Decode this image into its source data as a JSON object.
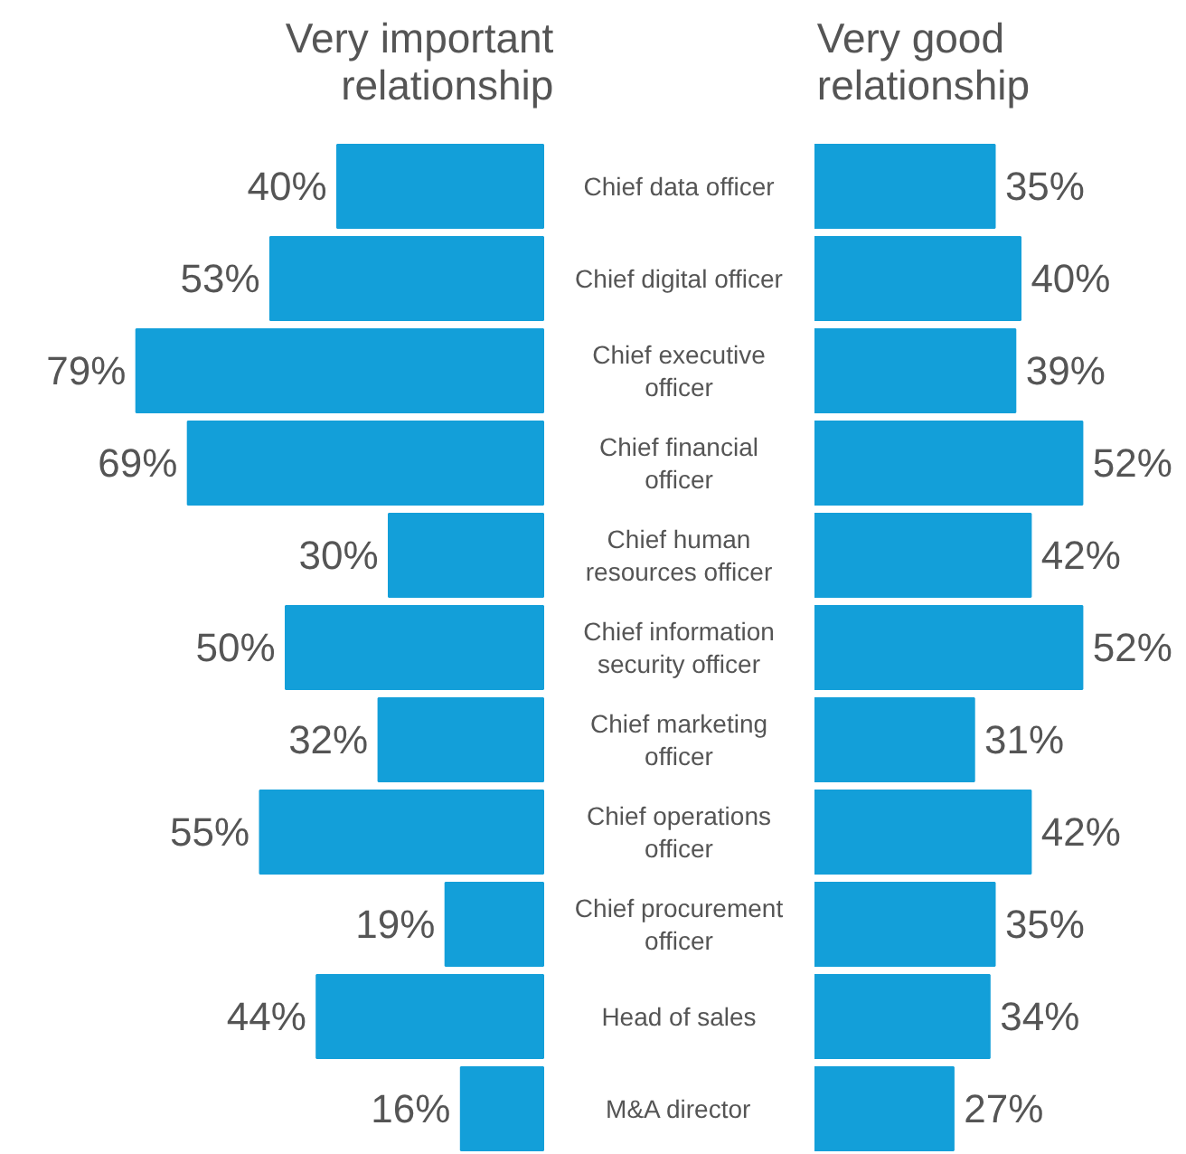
{
  "chart_data": [
    {
      "type": "bar",
      "orientation": "horizontal",
      "title": "Very important\nrelationship",
      "tick_labels": "y",
      "color": "#139fd9",
      "categories": [
        "Chief data officer",
        "Chief digital officer",
        "Chief executive\nofficer",
        "Chief financial\nofficer",
        "Chief human\nresources officer",
        "Chief information\nsecurity officer",
        "Chief marketing\nofficer",
        "Chief operations\nofficer",
        "Chief procurement\nofficer",
        "Head of sales",
        "M&A director"
      ],
      "values": [
        40,
        53,
        79,
        69,
        30,
        50,
        32,
        55,
        19,
        44,
        16
      ],
      "value_labels": [
        "40%",
        "53%",
        "79%",
        "69%",
        "30%",
        "50%",
        "32%",
        "55%",
        "19%",
        "44%",
        "16%"
      ]
    },
    {
      "type": "bar",
      "orientation": "horizontal",
      "title": "Very good\nrelationship",
      "color": "#139fd9",
      "categories": [
        null,
        null,
        null,
        null,
        null,
        null,
        null,
        null,
        null,
        null,
        null
      ],
      "values": [
        35,
        40,
        39,
        52,
        42,
        52,
        31,
        42,
        35,
        34,
        27
      ],
      "value_labels": [
        "35%",
        "40%",
        "39%",
        "52%",
        "42%",
        "52%",
        "31%",
        "42%",
        "35%",
        "34%",
        "27%"
      ]
    }
  ]
}
